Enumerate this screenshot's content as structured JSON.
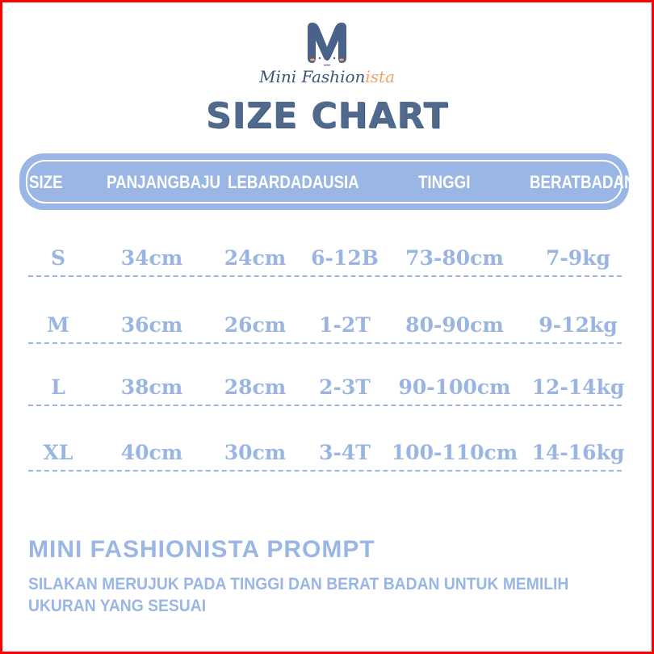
{
  "brand": {
    "name_main": "Mini Fashion",
    "name_accent": "ista",
    "logo_letter": "M"
  },
  "title": "SIZE CHART",
  "colors": {
    "header_bg": "#99b6e5",
    "text_blue": "#9ab5e2",
    "title": "#506a8e",
    "accent": "#f2a25f",
    "frame": "#ff0000"
  },
  "table": {
    "headers": [
      [
        "SIZE"
      ],
      [
        "PANJANG",
        "BAJU"
      ],
      [
        "LEBAR",
        "DADA"
      ],
      [
        "USIA"
      ],
      [
        "TINGGI"
      ],
      [
        "BERAT",
        "BADAN"
      ]
    ],
    "rows": [
      [
        "S",
        "34cm",
        "24cm",
        "6-12B",
        "73-80cm",
        "7-9kg"
      ],
      [
        "M",
        "36cm",
        "26cm",
        "1-2T",
        "80-90cm",
        "9-12kg"
      ],
      [
        "L",
        "38cm",
        "28cm",
        "2-3T",
        "90-100cm",
        "12-14kg"
      ],
      [
        "XL",
        "40cm",
        "30cm",
        "3-4T",
        "100-110cm",
        "14-16kg"
      ]
    ]
  },
  "prompt": {
    "title": "MINI FASHIONISTA PROMPT",
    "text": "SILAKAN MERUJUK PADA TINGGI DAN BERAT BADAN UNTUK MEMILIH UKURAN YANG SESUAI"
  }
}
